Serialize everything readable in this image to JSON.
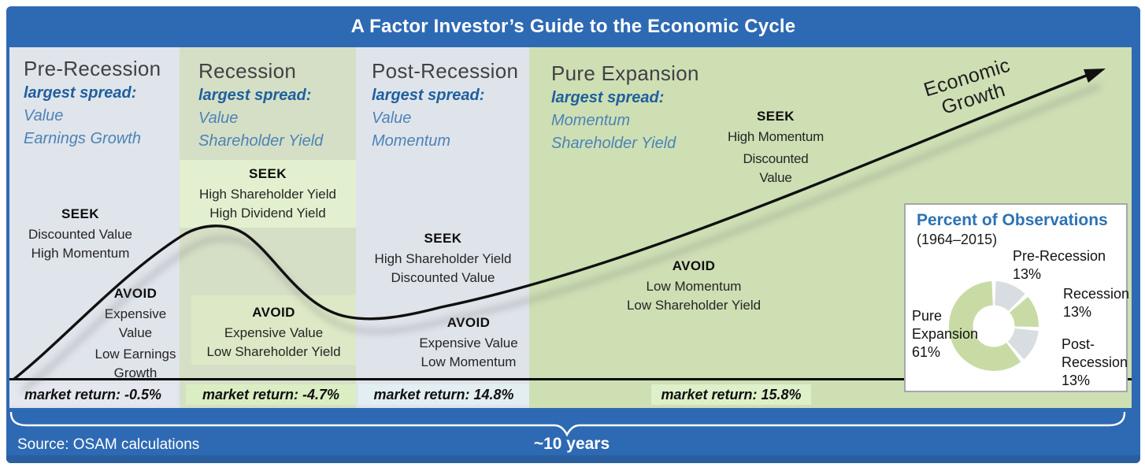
{
  "title": "A Factor Investor’s Guide to the Economic Cycle",
  "growth_arrow_label": "Economic Growth",
  "phases": [
    {
      "name": "Pre-Recession",
      "spread_label": "largest spread:",
      "spread": [
        "Value",
        "Earnings Growth"
      ],
      "seek_label": "SEEK",
      "seek": [
        "Discounted Value",
        "High Momentum"
      ],
      "avoid_label": "AVOID",
      "avoid": [
        "Expensive Value",
        "Low Earnings Growth"
      ],
      "market_return": "market return: -0.5%"
    },
    {
      "name": "Recession",
      "spread_label": "largest spread:",
      "spread": [
        "Value",
        "Shareholder Yield"
      ],
      "seek_label": "SEEK",
      "seek": [
        "High Shareholder Yield",
        "High Dividend Yield"
      ],
      "avoid_label": "AVOID",
      "avoid": [
        "Expensive Value",
        "Low Shareholder Yield"
      ],
      "market_return": "market return: -4.7%"
    },
    {
      "name": "Post-Recession",
      "spread_label": "largest spread:",
      "spread": [
        "Value",
        "Momentum"
      ],
      "seek_label": "SEEK",
      "seek": [
        "High Shareholder Yield",
        "Discounted Value"
      ],
      "avoid_label": "AVOID",
      "avoid": [
        "Expensive Value",
        "Low Momentum"
      ],
      "market_return": "market return: 14.8%"
    },
    {
      "name": "Pure Expansion",
      "spread_label": "largest spread:",
      "spread": [
        "Momentum",
        "Shareholder Yield"
      ],
      "seek_label": "SEEK",
      "seek": [
        "High Momentum",
        "Discounted Value"
      ],
      "avoid_label": "AVOID",
      "avoid": [
        "Low Momentum",
        "Low Shareholder Yield"
      ],
      "market_return": "market return: 15.8%"
    }
  ],
  "observations_panel": {
    "title": "Percent of Observations",
    "subtitle": "(1964–2015)",
    "labels": [
      {
        "name": "Pre-Recession",
        "value": "13%"
      },
      {
        "name": "Recession",
        "value": "13%"
      },
      {
        "name": "Post-Recession",
        "value": "13%"
      },
      {
        "name": "Pure Expansion",
        "value": "61%"
      }
    ]
  },
  "chart_data": {
    "type": "pie",
    "donut": true,
    "title": "Percent of Observations",
    "subtitle": "(1964–2015)",
    "categories": [
      "Pre-Recession",
      "Recession",
      "Post-Recession",
      "Pure Expansion"
    ],
    "values": [
      13,
      13,
      13,
      61
    ],
    "colors": [
      "#d8dde2",
      "#c8dba5",
      "#d8dde2",
      "#c8dba5"
    ],
    "start_angle_deg": 0,
    "direction": "clockwise",
    "legend_position": "around-slices"
  },
  "footer": {
    "source": "Source: OSAM calculations",
    "brace_label": "~10 years"
  },
  "colors": {
    "frame_blue": "#2e6ab3",
    "blue_text": "#1f5f9e",
    "gray_column": "#e0e4eb",
    "green_column": "#cedfb4"
  }
}
